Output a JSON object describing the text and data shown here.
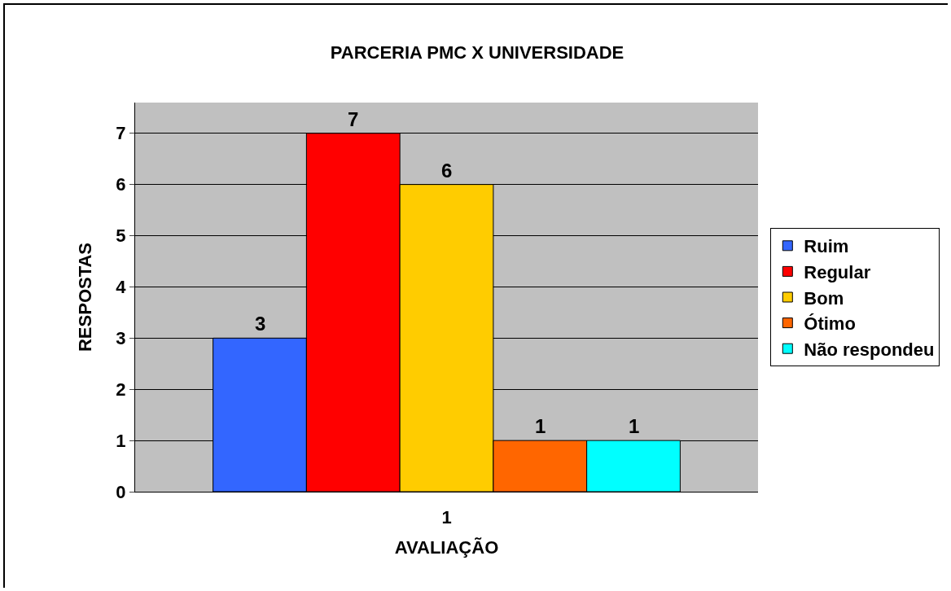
{
  "chart_data": {
    "type": "bar",
    "title": "PARCERIA PMC X UNIVERSIDADE",
    "xlabel": "AVALIAÇÃO",
    "ylabel": "RESPOSTAS",
    "categories": [
      "1"
    ],
    "series": [
      {
        "name": "Ruim",
        "color": "#3366ff",
        "values": [
          3
        ]
      },
      {
        "name": "Regular",
        "color": "#ff0000",
        "values": [
          7
        ]
      },
      {
        "name": "Bom",
        "color": "#ffcc00",
        "values": [
          6
        ]
      },
      {
        "name": "Ótimo",
        "color": "#ff6600",
        "values": [
          1
        ]
      },
      {
        "name": "Não respondeu",
        "color": "#00ffff",
        "values": [
          1
        ]
      }
    ],
    "ylim": [
      0,
      7.6
    ],
    "yticks": [
      0,
      1,
      2,
      3,
      4,
      5,
      6,
      7
    ],
    "grid": "y",
    "legend": "right",
    "data_labels": true
  }
}
